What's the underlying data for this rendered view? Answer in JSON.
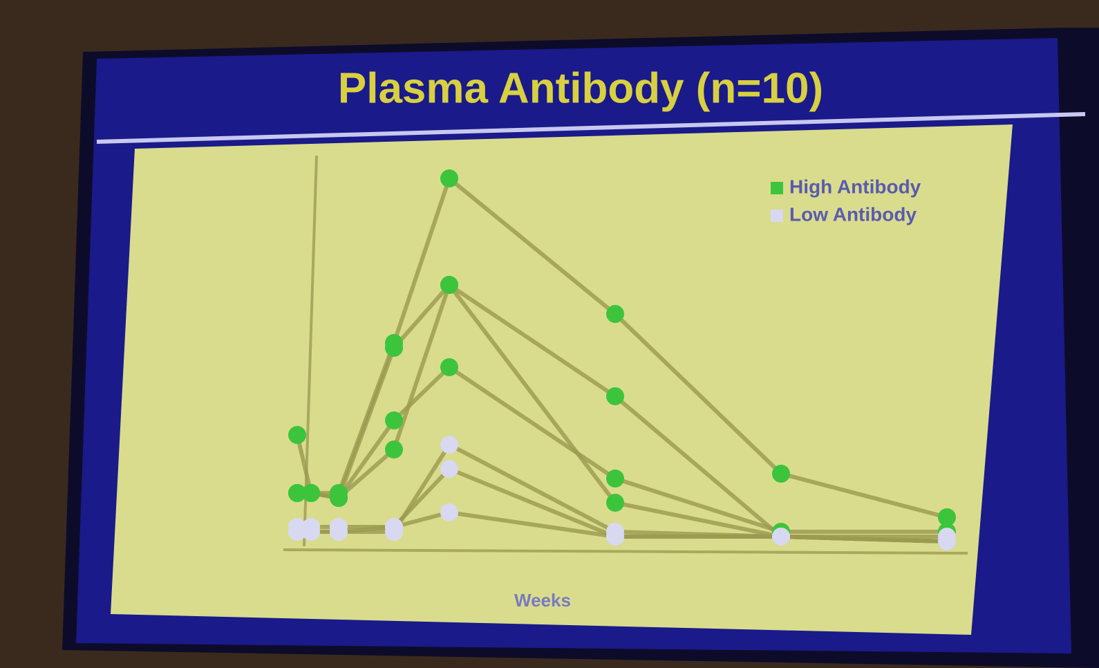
{
  "chart_data": {
    "type": "line",
    "title": "Plasma Antibody (n=10)",
    "x_label": "Weeks",
    "x": [
      1,
      2,
      4,
      8,
      12,
      24,
      36,
      48
    ],
    "xlim": [
      0,
      50
    ],
    "ylim": [
      0,
      8
    ],
    "legend": "upper right",
    "series": [
      {
        "name": "High Antibody",
        "color": "#3cc43c",
        "values": [
          [
            1.1,
            1.1,
            1.1,
            4.2,
            7.6,
            4.8,
            1.5,
            0.6
          ],
          [
            2.3,
            1.1,
            1.0,
            2.0,
            5.4,
            3.1,
            0.2,
            0.1
          ],
          [
            1.1,
            1.1,
            1.0,
            4.1,
            5.4,
            0.9,
            0.2,
            0.1
          ],
          [
            1.1,
            1.1,
            1.0,
            2.6,
            3.7,
            1.4,
            0.3,
            0.3
          ]
        ]
      },
      {
        "name": "Low Antibody",
        "color": "#d8d8f0",
        "values": [
          [
            0.4,
            0.4,
            0.4,
            0.4,
            1.6,
            0.2,
            0.2,
            0.1
          ],
          [
            0.3,
            0.3,
            0.3,
            0.3,
            2.1,
            0.3,
            0.2,
            0.2
          ],
          [
            0.3,
            0.3,
            0.3,
            0.4,
            0.7,
            0.2,
            0.2,
            0.1
          ]
        ]
      }
    ]
  }
}
